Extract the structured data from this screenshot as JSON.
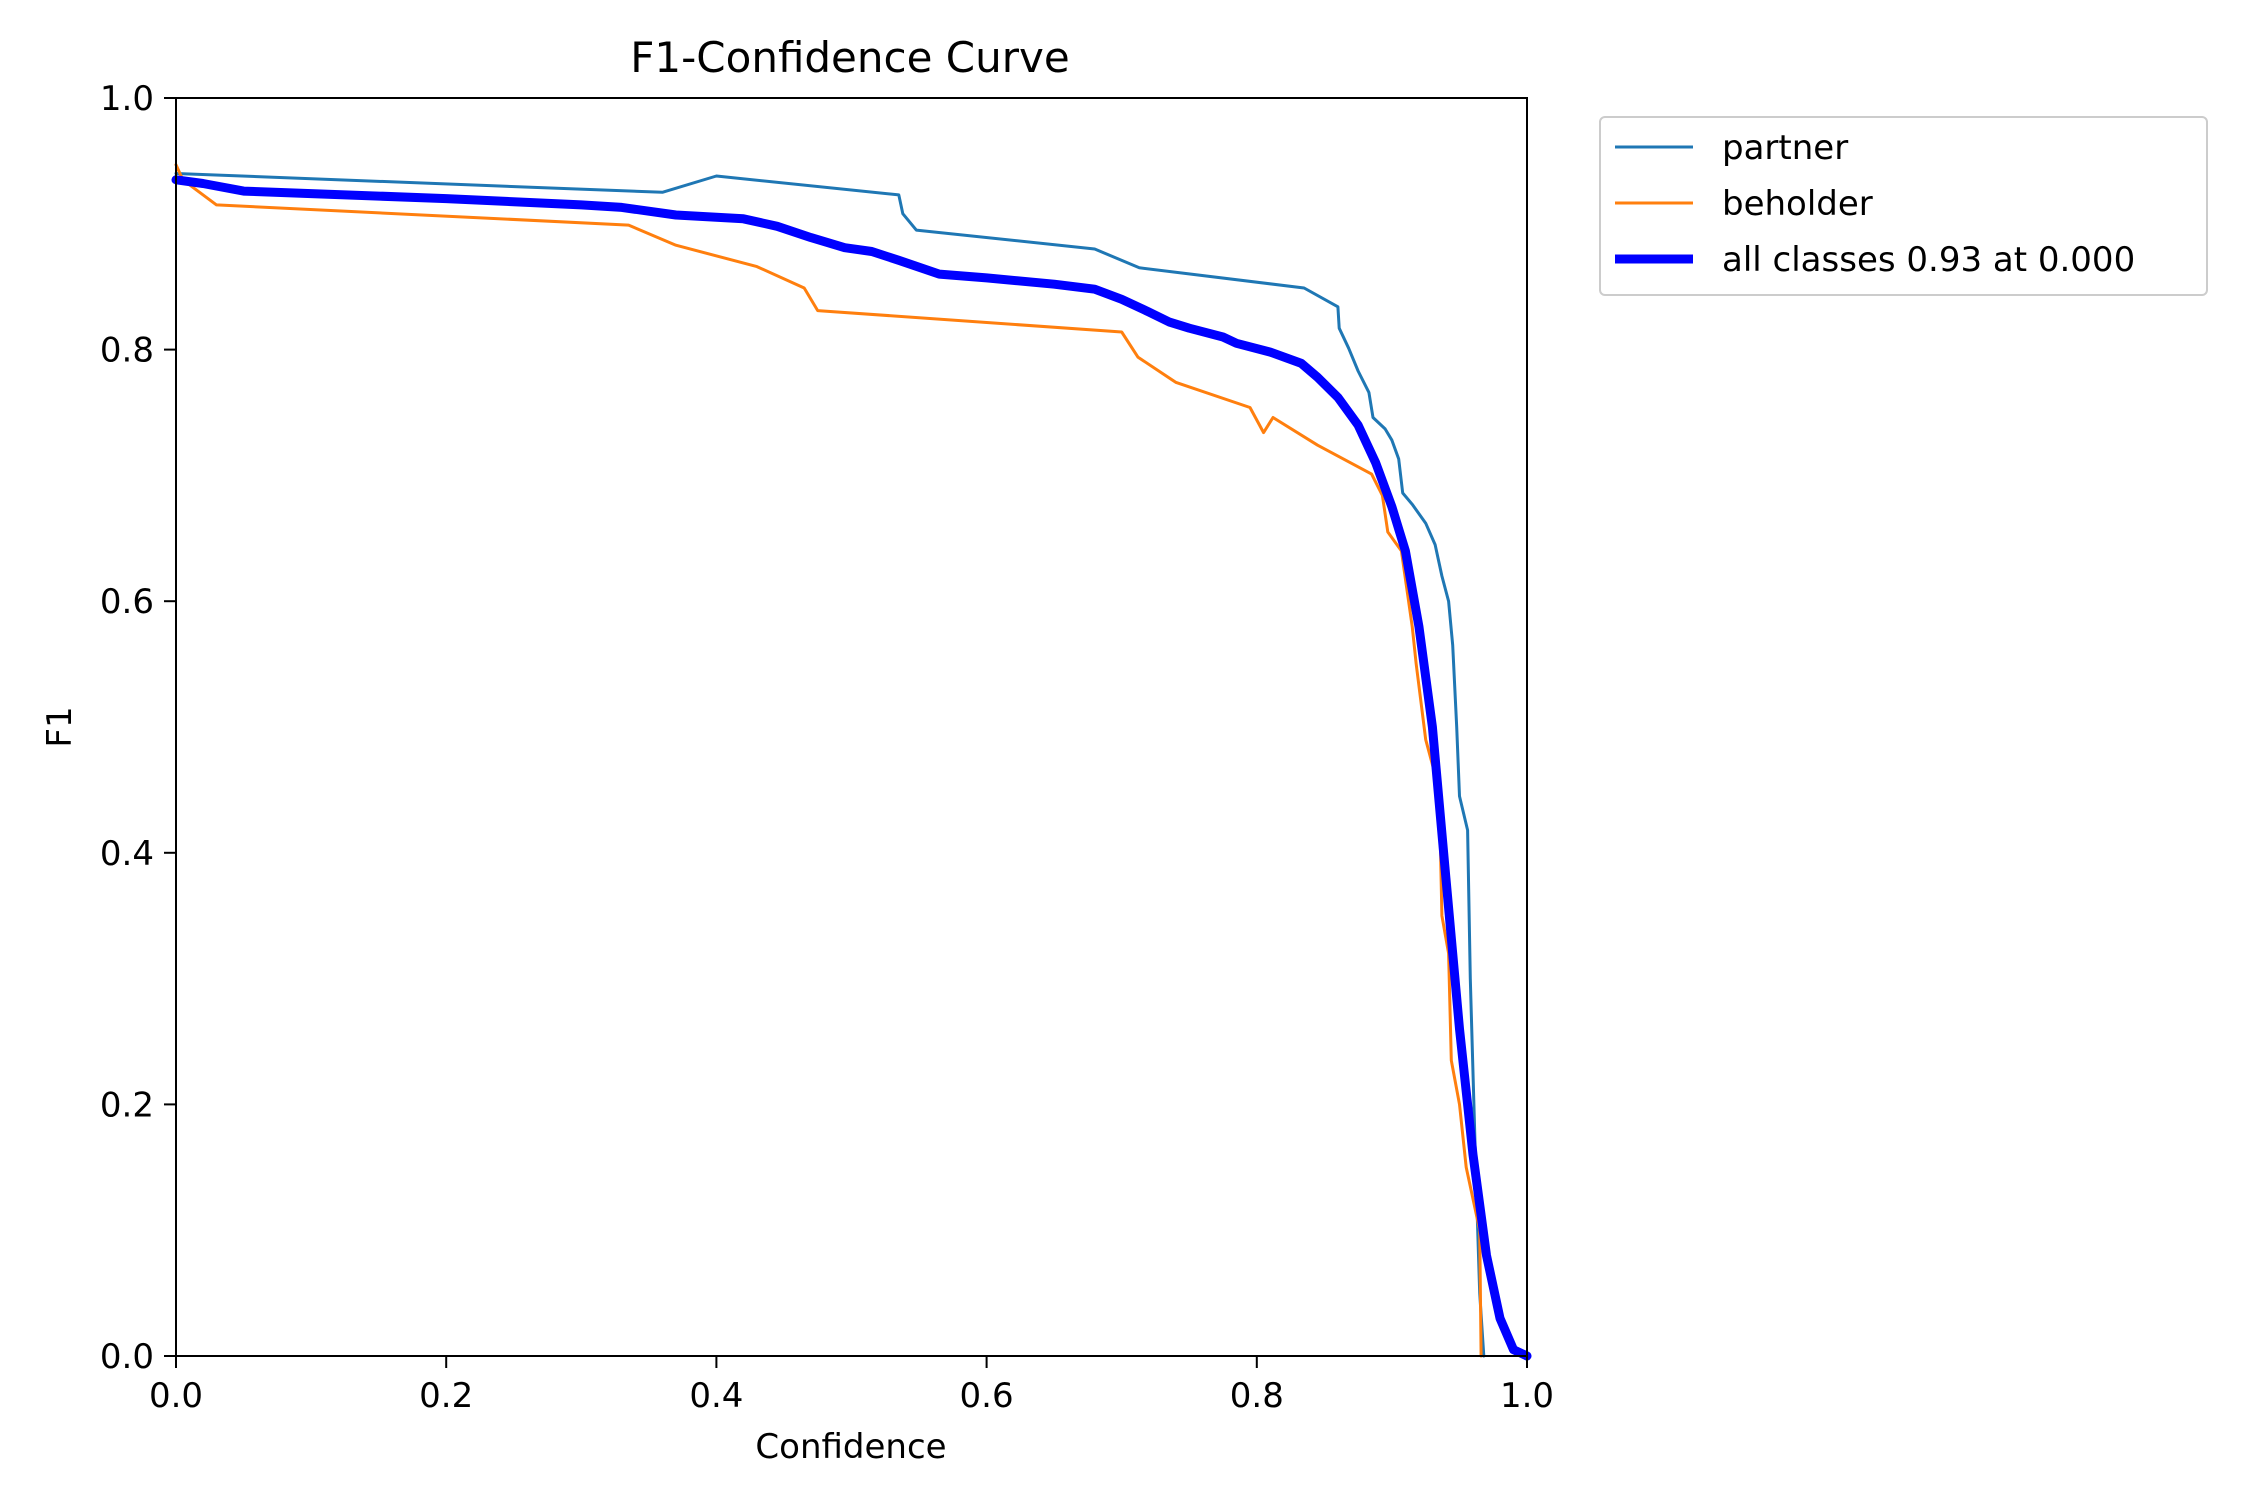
{
  "chart_data": {
    "type": "line",
    "title": "F1-Confidence Curve",
    "xlabel": "Confidence",
    "ylabel": "F1",
    "xlim": [
      0,
      1
    ],
    "ylim": [
      0,
      1
    ],
    "xticks": [
      "0.0",
      "0.2",
      "0.4",
      "0.6",
      "0.8",
      "1.0"
    ],
    "yticks": [
      "0.0",
      "0.2",
      "0.4",
      "0.6",
      "0.8",
      "1.0"
    ],
    "grid": false,
    "legend_position": "outside upper right",
    "series": [
      {
        "name": "partner",
        "color": "#1f77b4",
        "line_width": "thin",
        "points": [
          [
            0.0,
            0.94
          ],
          [
            0.36,
            0.925
          ],
          [
            0.4,
            0.938
          ],
          [
            0.535,
            0.923
          ],
          [
            0.538,
            0.908
          ],
          [
            0.548,
            0.895
          ],
          [
            0.68,
            0.88
          ],
          [
            0.713,
            0.865
          ],
          [
            0.835,
            0.849
          ],
          [
            0.86,
            0.834
          ],
          [
            0.861,
            0.817
          ],
          [
            0.868,
            0.801
          ],
          [
            0.875,
            0.783
          ],
          [
            0.883,
            0.766
          ],
          [
            0.886,
            0.746
          ],
          [
            0.895,
            0.737
          ],
          [
            0.9,
            0.728
          ],
          [
            0.905,
            0.713
          ],
          [
            0.908,
            0.686
          ],
          [
            0.915,
            0.677
          ],
          [
            0.925,
            0.662
          ],
          [
            0.932,
            0.645
          ],
          [
            0.937,
            0.62
          ],
          [
            0.942,
            0.6
          ],
          [
            0.945,
            0.565
          ],
          [
            0.948,
            0.5
          ],
          [
            0.95,
            0.445
          ],
          [
            0.956,
            0.418
          ],
          [
            0.958,
            0.3
          ],
          [
            0.962,
            0.15
          ],
          [
            0.965,
            0.05
          ],
          [
            0.968,
            0.0
          ]
        ]
      },
      {
        "name": "beholder",
        "color": "#ff7f0e",
        "line_width": "thin",
        "points": [
          [
            0.0,
            0.947
          ],
          [
            0.005,
            0.935
          ],
          [
            0.03,
            0.915
          ],
          [
            0.335,
            0.899
          ],
          [
            0.37,
            0.883
          ],
          [
            0.43,
            0.866
          ],
          [
            0.465,
            0.849
          ],
          [
            0.475,
            0.831
          ],
          [
            0.7,
            0.814
          ],
          [
            0.712,
            0.794
          ],
          [
            0.74,
            0.774
          ],
          [
            0.795,
            0.754
          ],
          [
            0.805,
            0.734
          ],
          [
            0.812,
            0.746
          ],
          [
            0.845,
            0.724
          ],
          [
            0.885,
            0.701
          ],
          [
            0.893,
            0.684
          ],
          [
            0.897,
            0.655
          ],
          [
            0.907,
            0.64
          ],
          [
            0.915,
            0.58
          ],
          [
            0.918,
            0.55
          ],
          [
            0.925,
            0.49
          ],
          [
            0.935,
            0.45
          ],
          [
            0.937,
            0.35
          ],
          [
            0.942,
            0.32
          ],
          [
            0.944,
            0.235
          ],
          [
            0.95,
            0.2
          ],
          [
            0.955,
            0.15
          ],
          [
            0.965,
            0.1
          ],
          [
            0.966,
            0.0
          ]
        ]
      },
      {
        "name": "all classes 0.93 at 0.000",
        "color": "#0000ff",
        "line_width": "thick",
        "points": [
          [
            0.0,
            0.935
          ],
          [
            0.02,
            0.932
          ],
          [
            0.05,
            0.926
          ],
          [
            0.1,
            0.924
          ],
          [
            0.2,
            0.92
          ],
          [
            0.3,
            0.915
          ],
          [
            0.33,
            0.913
          ],
          [
            0.37,
            0.907
          ],
          [
            0.42,
            0.904
          ],
          [
            0.445,
            0.898
          ],
          [
            0.47,
            0.889
          ],
          [
            0.495,
            0.881
          ],
          [
            0.515,
            0.878
          ],
          [
            0.535,
            0.871
          ],
          [
            0.565,
            0.86
          ],
          [
            0.6,
            0.857
          ],
          [
            0.65,
            0.852
          ],
          [
            0.68,
            0.848
          ],
          [
            0.7,
            0.84
          ],
          [
            0.72,
            0.83
          ],
          [
            0.735,
            0.822
          ],
          [
            0.75,
            0.817
          ],
          [
            0.775,
            0.81
          ],
          [
            0.785,
            0.805
          ],
          [
            0.81,
            0.798
          ],
          [
            0.833,
            0.789
          ],
          [
            0.845,
            0.778
          ],
          [
            0.86,
            0.762
          ],
          [
            0.875,
            0.74
          ],
          [
            0.888,
            0.71
          ],
          [
            0.9,
            0.675
          ],
          [
            0.91,
            0.64
          ],
          [
            0.92,
            0.58
          ],
          [
            0.93,
            0.5
          ],
          [
            0.94,
            0.38
          ],
          [
            0.95,
            0.26
          ],
          [
            0.96,
            0.16
          ],
          [
            0.97,
            0.08
          ],
          [
            0.98,
            0.03
          ],
          [
            0.99,
            0.005
          ],
          [
            1.0,
            0.0
          ]
        ]
      }
    ]
  }
}
